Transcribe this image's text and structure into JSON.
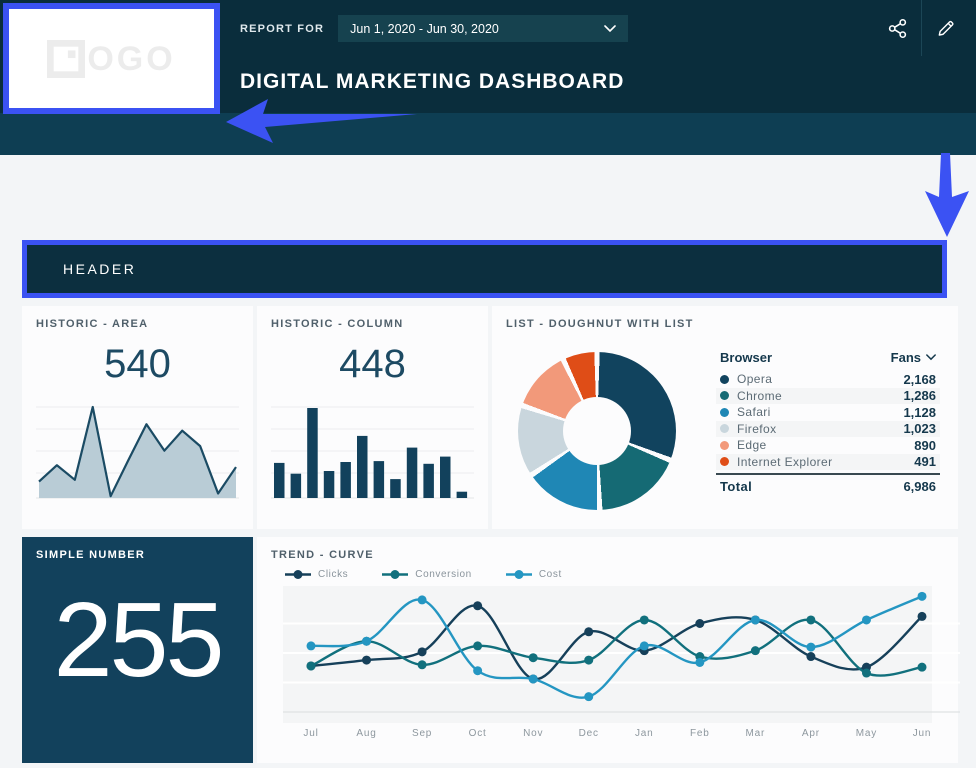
{
  "topbar": {
    "logo_text": "LOGO",
    "report_for_label": "REPORT FOR",
    "date_range": "Jun 1, 2020 - Jun 30, 2020",
    "title": "DIGITAL MARKETING DASHBOARD"
  },
  "header_section": {
    "label": "HEADER"
  },
  "cards": {
    "historic_area": {
      "title": "HISTORIC - AREA",
      "value": "540"
    },
    "historic_column": {
      "title": "HISTORIC - COLUMN",
      "value": "448"
    },
    "doughnut_list": {
      "title": "LIST - DOUGHNUT WITH LIST",
      "col_browser": "Browser",
      "col_fans": "Fans",
      "total_label": "Total",
      "total_value": "6,986"
    },
    "simple_number": {
      "title": "SIMPLE NUMBER",
      "value": "255"
    },
    "trend_curve": {
      "title": "TREND - CURVE"
    }
  },
  "chart_data": [
    {
      "id": "historic_area",
      "type": "area",
      "title": "HISTORIC - AREA",
      "headline_value": 540,
      "ylim": [
        0,
        100
      ],
      "grid": true,
      "values": [
        18,
        36,
        20,
        100,
        2,
        42,
        81,
        52,
        74,
        57,
        5,
        34
      ],
      "fill_color": "#b9ccd6",
      "line_color": "#1b4b64"
    },
    {
      "id": "historic_column",
      "type": "bar",
      "title": "HISTORIC - COLUMN",
      "headline_value": 448,
      "ylim": [
        0,
        100
      ],
      "grid": true,
      "values": [
        39,
        27,
        100,
        30,
        40,
        69,
        41,
        21,
        56,
        38,
        46,
        7
      ],
      "bar_color": "#12415c"
    },
    {
      "id": "browser_doughnut",
      "type": "pie",
      "title": "LIST - DOUGHNUT WITH LIST",
      "legend_position": "right-list",
      "labels": [
        "Opera",
        "Chrome",
        "Safari",
        "Firefox",
        "Edge",
        "Internet Explorer"
      ],
      "values": [
        2168,
        1286,
        1128,
        1023,
        890,
        491
      ],
      "display_values": [
        "2,168",
        "1,286",
        "1,128",
        "1,023",
        "890",
        "491"
      ],
      "total": 6986,
      "total_display": "6,986",
      "colors": [
        "#11435e",
        "#156a74",
        "#1f87b5",
        "#c9d6dd",
        "#f2997a",
        "#df4d17"
      ]
    },
    {
      "id": "trend_curve",
      "type": "line",
      "title": "TREND - CURVE",
      "x": [
        "Jul",
        "Aug",
        "Sep",
        "Oct",
        "Nov",
        "Dec",
        "Jan",
        "Feb",
        "Mar",
        "Apr",
        "May",
        "Jun"
      ],
      "ylim": [
        0,
        100
      ],
      "grid": true,
      "legend_position": "top",
      "series": [
        {
          "name": "Clicks",
          "color": "#16405a",
          "values": [
            39,
            44,
            51,
            90,
            28,
            68,
            52,
            75,
            78,
            47,
            38,
            81
          ]
        },
        {
          "name": "Conversion",
          "color": "#11707d",
          "values": [
            39,
            60,
            40,
            56,
            46,
            44,
            78,
            47,
            52,
            78,
            33,
            38
          ]
        },
        {
          "name": "Cost",
          "color": "#2496c2",
          "values": [
            56,
            60,
            95,
            35,
            28,
            13,
            56,
            42,
            78,
            55,
            78,
            98
          ]
        }
      ]
    }
  ],
  "colors": {
    "annotation_blue": "#3b52f3",
    "banner_top": "#0a2d3c",
    "banner_band": "#0e3e53",
    "card_dark": "#12415c"
  }
}
